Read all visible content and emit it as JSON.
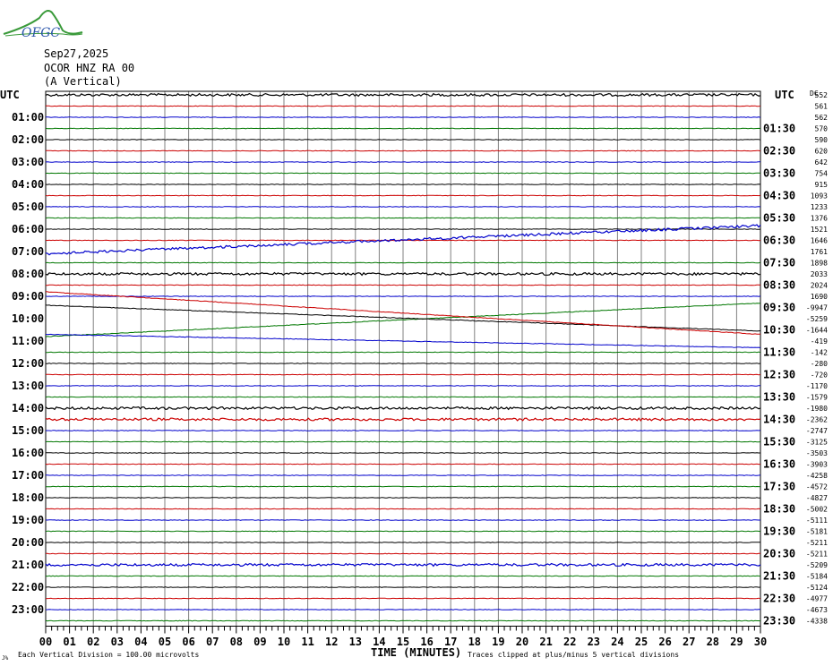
{
  "logo": {
    "text": "OFGC",
    "icon": "mountain-logo"
  },
  "header": {
    "date": "Sep27,2025",
    "station": "OCOR HNZ RA 00",
    "component": "(A Vertical)"
  },
  "axis": {
    "left_title": "UTC",
    "right_title": "UTC",
    "dc_title": "DC",
    "x_title": "TIME (MINUTES)",
    "left_labels": [
      "01:00",
      "02:00",
      "03:00",
      "04:00",
      "05:00",
      "06:00",
      "07:00",
      "08:00",
      "09:00",
      "10:00",
      "11:00",
      "12:00",
      "13:00",
      "14:00",
      "15:00",
      "16:00",
      "17:00",
      "18:00",
      "19:00",
      "20:00",
      "21:00",
      "22:00",
      "23:00"
    ],
    "right_labels": [
      "01:30",
      "02:30",
      "03:30",
      "04:30",
      "05:30",
      "06:30",
      "07:30",
      "08:30",
      "09:30",
      "10:30",
      "11:30",
      "12:30",
      "13:30",
      "14:30",
      "15:30",
      "16:30",
      "17:30",
      "18:30",
      "19:30",
      "20:30",
      "21:30",
      "22:30",
      "23:30"
    ],
    "x_ticks": [
      "00",
      "01",
      "02",
      "03",
      "04",
      "05",
      "06",
      "07",
      "08",
      "09",
      "10",
      "11",
      "12",
      "13",
      "14",
      "15",
      "16",
      "17",
      "18",
      "19",
      "20",
      "21",
      "22",
      "23",
      "24",
      "25",
      "26",
      "27",
      "28",
      "29",
      "30"
    ]
  },
  "footer": {
    "scale_note": "Each Vertical Division = 100.00 microvolts",
    "clip_note": "Traces clipped at plus/minus 5 vertical divisions",
    "corner_mark": "J%"
  },
  "colors": {
    "cycle": [
      "#000000",
      "#cc0000",
      "#0000cc",
      "#007700"
    ],
    "grid": "#808080"
  },
  "chart_data": {
    "type": "line",
    "title": "",
    "xlabel": "TIME (MINUTES)",
    "xlim": [
      0,
      30
    ],
    "trace_count": 48,
    "trace_interval_minutes": 30,
    "dc_offsets": [
      552,
      561,
      562,
      570,
      590,
      620,
      642,
      754,
      915,
      1093,
      1233,
      1376,
      1521,
      1646,
      1761,
      1898,
      2033,
      2024,
      1690,
      -9947,
      -5259,
      -1644,
      -419,
      -142,
      -280,
      -720,
      -1170,
      -1579,
      -1980,
      -2362,
      -2747,
      -3125,
      -3503,
      -3903,
      -4258,
      -4572,
      -4827,
      -5002,
      -5111,
      -5181,
      -5211,
      -5211,
      -5209,
      -5184,
      -5124,
      -4977,
      -4673,
      -4338
    ],
    "drifting_traces": [
      {
        "trace": 14,
        "start_offset": 0.2,
        "end_offset": -2.3
      },
      {
        "trace": 19,
        "start_offset": 2.6,
        "end_offset": -0.4
      },
      {
        "trace": 21,
        "start_offset": -3.4,
        "end_offset": 0.4
      },
      {
        "trace": 20,
        "start_offset": -1.2,
        "end_offset": 1.1
      },
      {
        "trace": 22,
        "start_offset": -0.6,
        "end_offset": 0.6
      },
      {
        "trace": 35,
        "start_offset": 0.0,
        "end_offset": 0.0
      }
    ],
    "busy_traces": [
      0,
      14,
      16,
      28,
      29,
      42
    ]
  }
}
